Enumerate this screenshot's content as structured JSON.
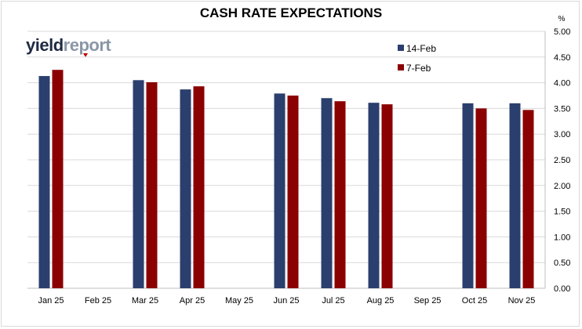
{
  "chart_data": {
    "type": "bar",
    "title": "CASH RATE EXPECTATIONS",
    "ylabel": "%",
    "ylim": [
      0,
      5
    ],
    "ytick_step": 0.5,
    "ytick_format": 2,
    "y_axis_side": "right",
    "grid": true,
    "legend_position": "top-center",
    "categories": [
      "Jan 25",
      "Feb 25",
      "Mar 25",
      "Apr 25",
      "May 25",
      "Jun 25",
      "Jul 25",
      "Aug 25",
      "Sep 25",
      "Oct 25",
      "Nov 25"
    ],
    "series": [
      {
        "name": "14-Feb",
        "color": "#2b3f6e",
        "values": [
          4.13,
          null,
          4.05,
          3.87,
          null,
          3.79,
          3.7,
          3.61,
          null,
          3.6,
          3.6
        ]
      },
      {
        "name": "7-Feb",
        "color": "#8b0000",
        "values": [
          4.25,
          null,
          4.01,
          3.93,
          null,
          3.75,
          3.64,
          3.58,
          null,
          3.5,
          3.47
        ]
      }
    ]
  },
  "logo": {
    "part1": "yield",
    "part2": "report"
  }
}
